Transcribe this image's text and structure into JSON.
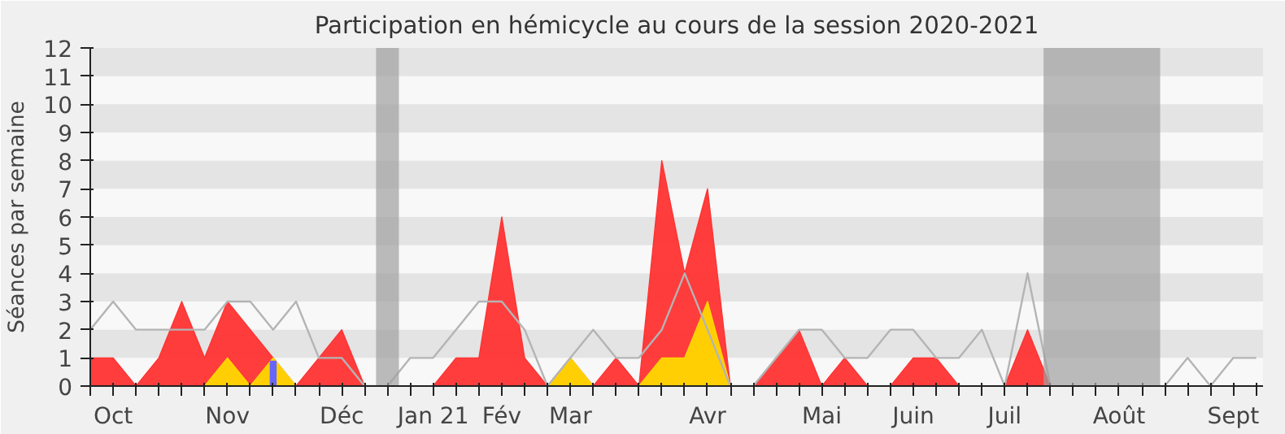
{
  "chart_data": {
    "type": "area",
    "title": "Participation en hémicycle au cours de la session 2020-2021",
    "ylabel": "Séances par semaine",
    "categories": [
      null,
      "Oct",
      null,
      null,
      null,
      null,
      "Nov",
      null,
      null,
      null,
      null,
      "Déc",
      null,
      null,
      null,
      "Jan 21",
      null,
      null,
      "Fév",
      null,
      null,
      "Mar",
      null,
      null,
      null,
      null,
      null,
      "Avr",
      null,
      null,
      null,
      null,
      "Mai",
      null,
      null,
      null,
      "Juin",
      null,
      null,
      null,
      "Juil",
      null,
      null,
      null,
      null,
      "Août",
      null,
      null,
      null,
      null,
      "Sept",
      null
    ],
    "series": [
      {
        "color": "#ff3333",
        "values": [
          1,
          1,
          0,
          1,
          3,
          1,
          3,
          2,
          1,
          0,
          1,
          2,
          0,
          0,
          0,
          0,
          1,
          1,
          6,
          1,
          0,
          1,
          0,
          1,
          0,
          8,
          4,
          7,
          0,
          0,
          1,
          2,
          0,
          1,
          0,
          0,
          1,
          1,
          0,
          0,
          0,
          2,
          0,
          0,
          0,
          0,
          0,
          0,
          0,
          0,
          0,
          0
        ]
      },
      {
        "color": "#ffd700",
        "values": [
          0,
          0,
          0,
          0,
          0,
          0,
          1,
          0,
          1,
          0,
          0,
          0,
          0,
          0,
          0,
          0,
          0,
          0,
          0,
          0,
          0,
          1,
          0,
          0,
          0,
          1,
          1,
          3,
          0,
          0,
          0,
          0,
          0,
          0,
          0,
          0,
          0,
          0,
          0,
          0,
          0,
          0,
          0,
          0,
          0,
          0,
          0,
          0,
          0,
          0,
          0,
          0
        ]
      },
      {
        "type": "line",
        "color": "#b4b4b4",
        "values": [
          2,
          3,
          2,
          2,
          2,
          2,
          3,
          3,
          2,
          3,
          1,
          1,
          0,
          0,
          1,
          1,
          2,
          3,
          3,
          2,
          0,
          1,
          2,
          1,
          1,
          2,
          4,
          2,
          0,
          0,
          1,
          2,
          2,
          1,
          1,
          2,
          2,
          1,
          1,
          2,
          0,
          4,
          0,
          null,
          null,
          null,
          null,
          0,
          1,
          0,
          1,
          1
        ]
      },
      {
        "type": "bar",
        "color": "#6666ff",
        "values": [
          null,
          null,
          null,
          null,
          null,
          null,
          null,
          null,
          0.9,
          null,
          null,
          null,
          null,
          null,
          null,
          null,
          null,
          null,
          null,
          null,
          null,
          null,
          null,
          null,
          null,
          null,
          null,
          null,
          null,
          null,
          null,
          null,
          null,
          null,
          null,
          null,
          null,
          null,
          null,
          null,
          null,
          null,
          null,
          null,
          null,
          null,
          null,
          null,
          null,
          null,
          null,
          null
        ]
      }
    ],
    "ylim": [
      0,
      12
    ],
    "yticks": [
      0,
      1,
      2,
      3,
      4,
      5,
      6,
      7,
      8,
      9,
      10,
      11,
      12
    ]
  }
}
